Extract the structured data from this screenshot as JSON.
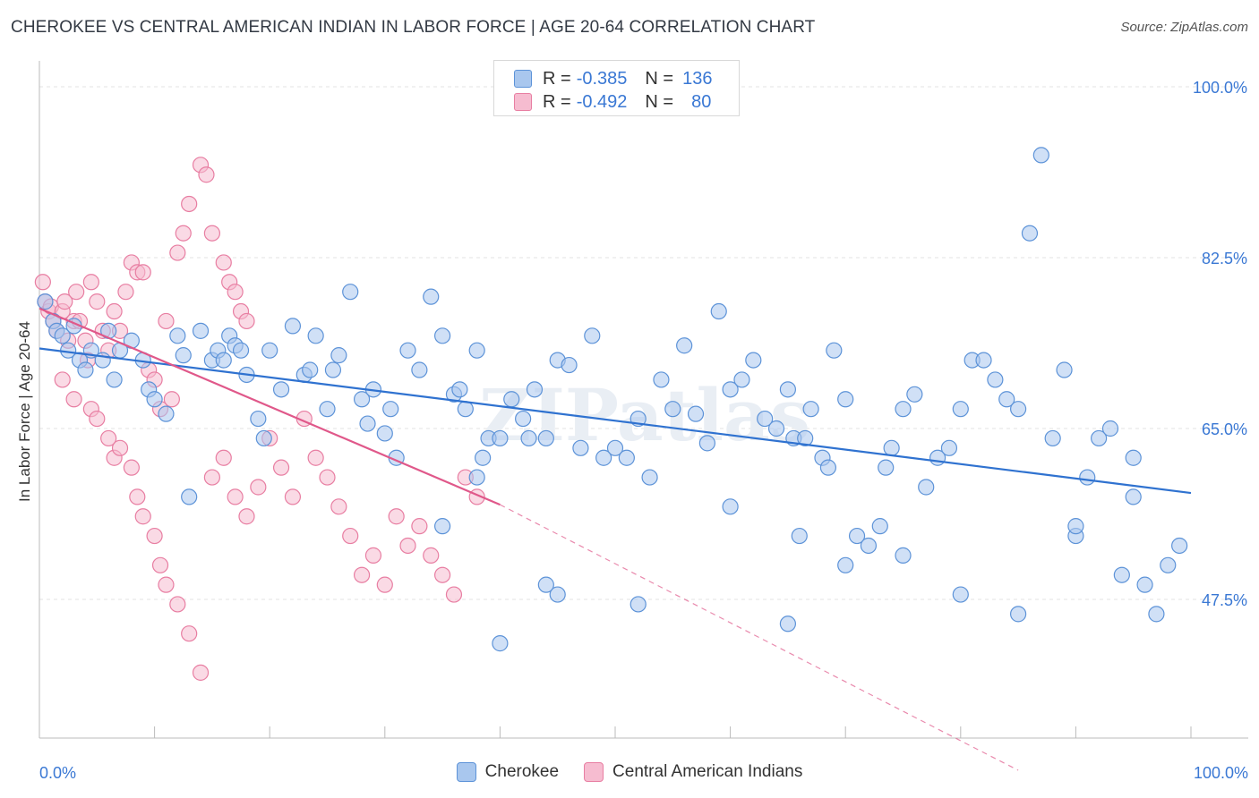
{
  "title": "CHEROKEE VS CENTRAL AMERICAN INDIAN IN LABOR FORCE | AGE 20-64 CORRELATION CHART",
  "source": "Source: ZipAtlas.com",
  "watermark": "ZIPatlas",
  "legend": {
    "rows": [
      {
        "r_label": "R =",
        "r_value": "-0.385",
        "n_label": "N =",
        "n_value": "136"
      },
      {
        "r_label": "R =",
        "r_value": "-0.492",
        "n_label": "N =",
        "n_value": "80"
      }
    ]
  },
  "colors": {
    "cherokee_fill": "#a9c7ee",
    "cherokee_stroke": "#5d93d8",
    "cherokee_line": "#2f72d0",
    "cai_fill": "#f6bcd0",
    "cai_stroke": "#e87ea2",
    "cai_line": "#e0588a",
    "axis_text": "#3a78d4",
    "grid": "#e3e3e3"
  },
  "chart_data": {
    "type": "scatter",
    "title": "CHEROKEE VS CENTRAL AMERICAN INDIAN IN LABOR FORCE | AGE 20-64 CORRELATION CHART",
    "xlabel": "",
    "ylabel": "In Labor Force | Age 20-64",
    "xlim": [
      0,
      100
    ],
    "ylim": [
      30,
      102
    ],
    "x_tick_labels": [
      "0.0%",
      "100.0%"
    ],
    "y_ticks": [
      47.5,
      65.0,
      82.5,
      100.0
    ],
    "y_tick_labels": [
      "47.5%",
      "65.0%",
      "82.5%",
      "100.0%"
    ],
    "grid": true,
    "legend_position": "top-center",
    "series": [
      {
        "name": "Cherokee",
        "r": -0.385,
        "n": 136,
        "trend": {
          "x0": 0,
          "y0": 73.2,
          "x1": 100,
          "y1": 58.4
        },
        "points": [
          [
            0.5,
            78
          ],
          [
            1.2,
            76
          ],
          [
            1.5,
            75
          ],
          [
            2,
            74.5
          ],
          [
            2.5,
            73
          ],
          [
            3,
            75.5
          ],
          [
            3.5,
            72
          ],
          [
            4,
            71
          ],
          [
            4.5,
            73
          ],
          [
            5.5,
            72
          ],
          [
            6,
            75
          ],
          [
            6.5,
            70
          ],
          [
            7,
            73
          ],
          [
            8,
            74
          ],
          [
            9,
            72
          ],
          [
            9.5,
            69
          ],
          [
            10,
            68
          ],
          [
            11,
            66.5
          ],
          [
            12,
            74.5
          ],
          [
            12.5,
            72.5
          ],
          [
            13,
            58
          ],
          [
            14,
            75
          ],
          [
            15,
            72
          ],
          [
            15.5,
            73
          ],
          [
            16,
            72
          ],
          [
            16.5,
            74.5
          ],
          [
            17,
            73.5
          ],
          [
            17.5,
            73
          ],
          [
            18,
            70.5
          ],
          [
            19,
            66
          ],
          [
            19.5,
            64
          ],
          [
            20,
            73
          ],
          [
            21,
            69
          ],
          [
            22,
            75.5
          ],
          [
            23,
            70.5
          ],
          [
            23.5,
            71
          ],
          [
            24,
            74.5
          ],
          [
            25,
            67
          ],
          [
            25.5,
            71
          ],
          [
            26,
            72.5
          ],
          [
            27,
            79
          ],
          [
            28,
            68
          ],
          [
            28.5,
            65.5
          ],
          [
            29,
            69
          ],
          [
            30,
            64.5
          ],
          [
            30.5,
            67
          ],
          [
            31,
            62
          ],
          [
            32,
            73
          ],
          [
            33,
            71
          ],
          [
            34,
            78.5
          ],
          [
            35,
            74.5
          ],
          [
            36,
            68.5
          ],
          [
            36.5,
            69
          ],
          [
            37,
            67
          ],
          [
            38,
            73
          ],
          [
            38.5,
            62
          ],
          [
            39,
            64
          ],
          [
            40,
            64
          ],
          [
            41,
            68
          ],
          [
            42,
            66
          ],
          [
            42.5,
            64
          ],
          [
            43,
            69
          ],
          [
            44,
            64
          ],
          [
            45,
            72
          ],
          [
            46,
            71.5
          ],
          [
            47,
            63
          ],
          [
            48,
            74.5
          ],
          [
            49,
            62
          ],
          [
            50,
            63
          ],
          [
            51,
            62
          ],
          [
            52,
            66
          ],
          [
            53,
            60
          ],
          [
            54,
            70
          ],
          [
            55,
            67
          ],
          [
            56,
            73.5
          ],
          [
            57,
            66.5
          ],
          [
            58,
            63.5
          ],
          [
            59,
            77
          ],
          [
            60,
            69
          ],
          [
            61,
            70
          ],
          [
            62,
            72
          ],
          [
            63,
            66
          ],
          [
            64,
            65
          ],
          [
            65,
            69
          ],
          [
            65.5,
            64
          ],
          [
            66,
            54
          ],
          [
            66.5,
            64
          ],
          [
            67,
            67
          ],
          [
            68,
            62
          ],
          [
            68.5,
            61
          ],
          [
            69,
            73
          ],
          [
            70,
            68
          ],
          [
            71,
            54
          ],
          [
            72,
            53
          ],
          [
            73,
            55
          ],
          [
            73.5,
            61
          ],
          [
            74,
            63
          ],
          [
            75,
            67
          ],
          [
            76,
            68.5
          ],
          [
            77,
            59
          ],
          [
            78,
            62
          ],
          [
            79,
            63
          ],
          [
            80,
            67
          ],
          [
            81,
            72
          ],
          [
            82,
            72
          ],
          [
            83,
            70
          ],
          [
            84,
            68
          ],
          [
            85,
            67
          ],
          [
            86,
            85
          ],
          [
            87,
            93
          ],
          [
            88,
            64
          ],
          [
            89,
            71
          ],
          [
            90,
            54
          ],
          [
            91,
            60
          ],
          [
            92,
            64
          ],
          [
            93,
            65
          ],
          [
            94,
            50
          ],
          [
            95,
            62
          ],
          [
            96,
            49
          ],
          [
            97,
            46
          ],
          [
            98,
            51
          ],
          [
            99,
            53
          ],
          [
            40,
            43
          ],
          [
            45,
            48
          ],
          [
            60,
            57
          ],
          [
            65,
            45
          ],
          [
            70,
            51
          ],
          [
            75,
            52
          ],
          [
            80,
            48
          ],
          [
            85,
            46
          ],
          [
            90,
            55
          ],
          [
            95,
            58
          ],
          [
            35,
            55
          ],
          [
            38,
            60
          ],
          [
            44,
            49
          ],
          [
            52,
            47
          ]
        ]
      },
      {
        "name": "Central American Indians",
        "r": -0.492,
        "n": 80,
        "trend": {
          "x0": 0,
          "y0": 77.3,
          "x1": 40,
          "y1": 57.2,
          "dash_x1": 85,
          "dash_y1": 30
        },
        "points": [
          [
            0.3,
            80
          ],
          [
            0.5,
            78
          ],
          [
            0.8,
            77
          ],
          [
            1,
            77.5
          ],
          [
            1.2,
            76
          ],
          [
            1.5,
            75
          ],
          [
            2,
            77
          ],
          [
            2.2,
            78
          ],
          [
            2.5,
            74
          ],
          [
            3,
            76
          ],
          [
            3.2,
            79
          ],
          [
            3.5,
            76
          ],
          [
            4,
            74
          ],
          [
            4.2,
            72
          ],
          [
            4.5,
            80
          ],
          [
            5,
            78
          ],
          [
            5.5,
            75
          ],
          [
            6,
            73
          ],
          [
            6.5,
            77
          ],
          [
            7,
            75
          ],
          [
            7.5,
            79
          ],
          [
            8,
            82
          ],
          [
            8.5,
            81
          ],
          [
            9,
            81
          ],
          [
            9.5,
            71
          ],
          [
            10,
            70
          ],
          [
            10.5,
            67
          ],
          [
            11,
            76
          ],
          [
            11.5,
            68
          ],
          [
            12,
            83
          ],
          [
            12.5,
            85
          ],
          [
            13,
            88
          ],
          [
            14,
            92
          ],
          [
            14.5,
            91
          ],
          [
            15,
            85
          ],
          [
            16,
            82
          ],
          [
            16.5,
            80
          ],
          [
            17,
            79
          ],
          [
            17.5,
            77
          ],
          [
            18,
            76
          ],
          [
            2,
            70
          ],
          [
            3,
            68
          ],
          [
            4.5,
            67
          ],
          [
            5,
            66
          ],
          [
            6,
            64
          ],
          [
            6.5,
            62
          ],
          [
            7,
            63
          ],
          [
            8,
            61
          ],
          [
            8.5,
            58
          ],
          [
            9,
            56
          ],
          [
            10,
            54
          ],
          [
            10.5,
            51
          ],
          [
            11,
            49
          ],
          [
            12,
            47
          ],
          [
            13,
            44
          ],
          [
            14,
            40
          ],
          [
            15,
            60
          ],
          [
            16,
            62
          ],
          [
            17,
            58
          ],
          [
            18,
            56
          ],
          [
            19,
            59
          ],
          [
            20,
            64
          ],
          [
            21,
            61
          ],
          [
            22,
            58
          ],
          [
            23,
            66
          ],
          [
            24,
            62
          ],
          [
            25,
            60
          ],
          [
            26,
            57
          ],
          [
            27,
            54
          ],
          [
            28,
            50
          ],
          [
            29,
            52
          ],
          [
            30,
            49
          ],
          [
            31,
            56
          ],
          [
            32,
            53
          ],
          [
            33,
            55
          ],
          [
            34,
            52
          ],
          [
            35,
            50
          ],
          [
            36,
            48
          ],
          [
            37,
            60
          ],
          [
            38,
            58
          ]
        ]
      }
    ]
  },
  "bottom_legend": [
    {
      "label": "Cherokee"
    },
    {
      "label": "Central American Indians"
    }
  ]
}
